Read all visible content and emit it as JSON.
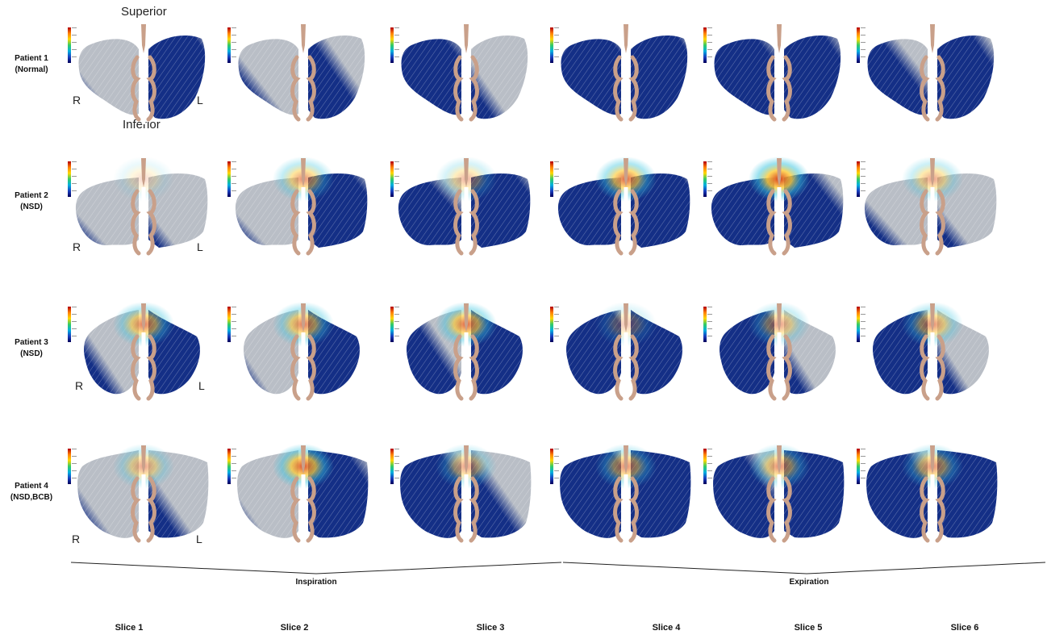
{
  "orientation": {
    "superior": "Superior",
    "inferior": "Inferior",
    "right": "R",
    "left": "L"
  },
  "patients": [
    {
      "name": "Patient 1",
      "condition": "(Normal)"
    },
    {
      "name": "Patient 2",
      "condition": "(NSD)"
    },
    {
      "name": "Patient 3",
      "condition": "(NSD)"
    },
    {
      "name": "Patient 4",
      "condition": "(NSD,BCB)"
    }
  ],
  "phases": {
    "inspiration": "Inspiration",
    "expiration": "Expiration"
  },
  "slices": [
    "Slice 1",
    "Slice 2",
    "Slice 3",
    "Slice 4",
    "Slice 5",
    "Slice 6"
  ],
  "colors": {
    "grey_field": "#b9bec6",
    "blue_field": "#142f86",
    "septum": "#c9a08a",
    "hot": "#d43a1c"
  }
}
